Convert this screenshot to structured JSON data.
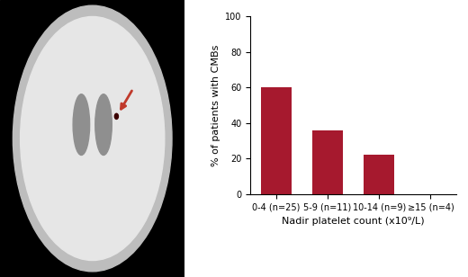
{
  "chart_data": {
    "type": "bar",
    "categories": [
      "0-4 (n=25)",
      "5-9 (n=11)",
      "10-14 (n=9)",
      "≥15 (n=4)"
    ],
    "values": [
      60,
      36,
      22,
      0
    ],
    "color": "#a6192e",
    "x_label": "Nadir platelet count (x10⁹/L)",
    "y_label": "% of patients with CMBs",
    "ylim": [
      0,
      100
    ],
    "yticks": [
      0,
      20,
      40,
      60,
      80,
      100
    ],
    "grid": false
  }
}
